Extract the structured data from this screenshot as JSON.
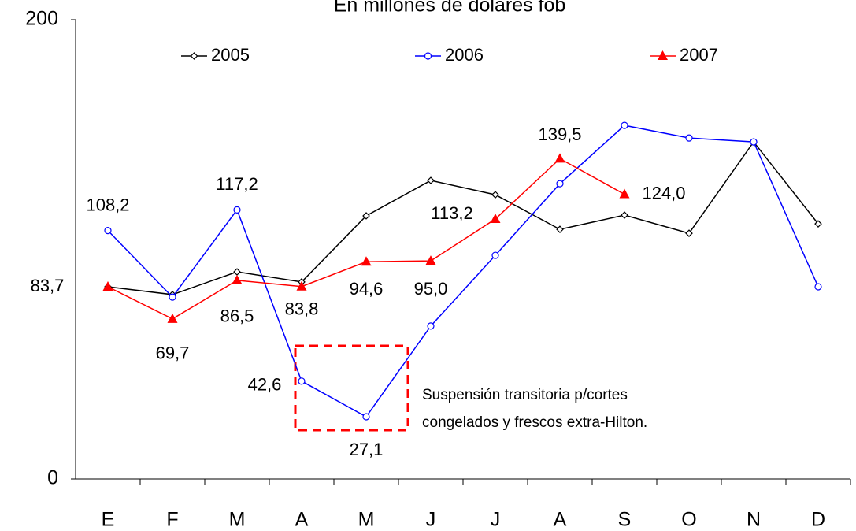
{
  "chart_data": {
    "type": "line",
    "title": "En millones de dólares fob",
    "categories": [
      "E",
      "F",
      "M",
      "A",
      "M",
      "J",
      "J",
      "A",
      "S",
      "O",
      "N",
      "D"
    ],
    "ylim": [
      0,
      200
    ],
    "yticks": [
      0,
      200
    ],
    "series": [
      {
        "name": "2005",
        "color": "#000000",
        "marker": "diamond",
        "values": [
          83.7,
          80.3,
          90.2,
          85.8,
          114.6,
          130.0,
          123.8,
          108.7,
          114.9,
          107.0,
          146.8,
          111.1
        ]
      },
      {
        "name": "2006",
        "color": "#0000ff",
        "marker": "circle",
        "values": [
          108.2,
          79.2,
          117.2,
          42.6,
          27.1,
          66.6,
          97.4,
          128.6,
          154.0,
          148.5,
          146.8,
          83.7
        ],
        "value_labels": [
          "108,2",
          null,
          "117,2",
          "42,6",
          "27,1",
          null,
          null,
          null,
          null,
          null,
          null,
          null
        ]
      },
      {
        "name": "2007",
        "color": "#ff0000",
        "marker": "triangle",
        "values": [
          83.7,
          69.7,
          86.5,
          83.8,
          94.6,
          95.0,
          113.2,
          139.5,
          124.0,
          null,
          null,
          null
        ],
        "value_labels": [
          "83,7",
          "69,7",
          "86,5",
          "83,8",
          "94,6",
          "95,0",
          "113,2",
          "139,5",
          "124,0",
          null,
          null,
          null
        ]
      }
    ],
    "annotation": [
      "Suspensión transitoria p/cortes",
      "congelados y frescos extra-Hilton."
    ]
  }
}
